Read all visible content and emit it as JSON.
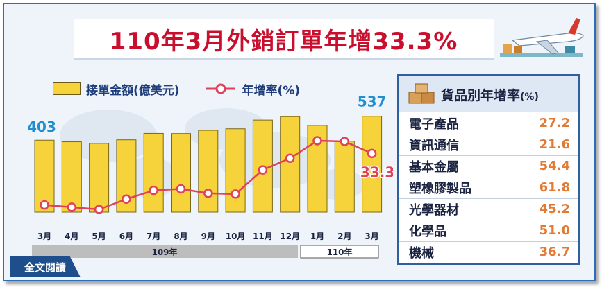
{
  "header": {
    "title": "110年3月外銷訂單年增33.3%"
  },
  "legend": {
    "bar_label": "接單金額(億美元)",
    "line_label": "年增率(%)"
  },
  "chart_data": {
    "type": "bar",
    "categories": [
      "3月",
      "4月",
      "5月",
      "6月",
      "7月",
      "8月",
      "9月",
      "10月",
      "11月",
      "12月",
      "1月",
      "2月",
      "3月"
    ],
    "series": [
      {
        "name": "接單金額(億美元)",
        "type": "bar",
        "values": [
          403,
          394,
          385,
          405,
          441,
          440,
          458,
          467,
          516,
          535,
          486,
          397,
          537
        ]
      },
      {
        "name": "年增率(%)",
        "type": "line",
        "values": [
          -2.0,
          -3.5,
          -5.0,
          2.0,
          8.0,
          9.0,
          6.0,
          5.5,
          22.0,
          30.0,
          42.0,
          41.5,
          33.3
        ]
      }
    ],
    "data_labels": {
      "first_bar": "403",
      "last_bar": "537",
      "last_line": "33.3"
    },
    "year_groups": [
      {
        "label": "109年"
      },
      {
        "label": "110年"
      }
    ],
    "colors": {
      "bar": "#f6d33b",
      "bar_edge": "#7a6816",
      "line": "#e0405a",
      "bar_label": "#1f8fd0",
      "line_label": "#e0405a"
    }
  },
  "panel": {
    "title": "貨品別年增率",
    "unit": "(%)",
    "icon": "boxes-icon",
    "rows": [
      {
        "name": "電子產品",
        "value": "27.2"
      },
      {
        "name": "資訊通信",
        "value": "21.6"
      },
      {
        "name": "基本金屬",
        "value": "54.4"
      },
      {
        "name": "塑橡膠製品",
        "value": "61.8"
      },
      {
        "name": "光學器材",
        "value": "45.2"
      },
      {
        "name": "化學品",
        "value": "51.0"
      },
      {
        "name": "機械",
        "value": "36.7"
      }
    ]
  },
  "footer": {
    "read_more": "全文閱讀"
  }
}
